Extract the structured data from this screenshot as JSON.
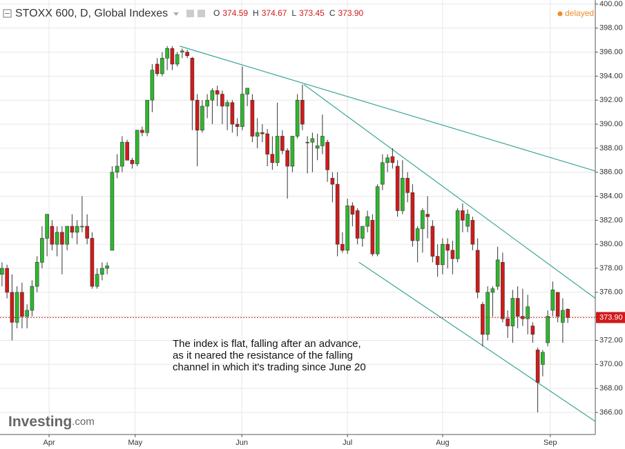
{
  "chart_data": {
    "type": "candlestick",
    "title": "STOXX 600, D, Global Indexes",
    "ohlc_header": [
      {
        "key": "O",
        "value": "374.59"
      },
      {
        "key": "H",
        "value": "374.67"
      },
      {
        "key": "L",
        "value": "373.45"
      },
      {
        "key": "C",
        "value": "373.90"
      }
    ],
    "status": "delayed",
    "logo": {
      "main": "Investing",
      "suffix": ".com"
    },
    "annotation": [
      "The index is flat, falling after an advance,",
      "as it neared the resistance of the falling",
      "channel in which it's trading since June 20"
    ],
    "up_color": "#2db82d",
    "down_color": "#d11a1a",
    "trendline_color": "#3aa597",
    "grid": true,
    "ylim": [
      364.16,
      400.34
    ],
    "xlim": [
      -0.4,
      118.5
    ],
    "yticks": [
      {
        "value": 366,
        "label": "366.00"
      },
      {
        "value": 368,
        "label": "368.00"
      },
      {
        "value": 370,
        "label": "370.00"
      },
      {
        "value": 372,
        "label": "372.00"
      },
      {
        "value": 374,
        "label": "374.00"
      },
      {
        "value": 376,
        "label": "376.00"
      },
      {
        "value": 378,
        "label": "378.00"
      },
      {
        "value": 380,
        "label": "380.00"
      },
      {
        "value": 382,
        "label": "382.00"
      },
      {
        "value": 384,
        "label": "384.00"
      },
      {
        "value": 386,
        "label": "386.00"
      },
      {
        "value": 388,
        "label": "388.00"
      },
      {
        "value": 390,
        "label": "390.00"
      },
      {
        "value": 392,
        "label": "392.00"
      },
      {
        "value": 394,
        "label": "394.00"
      },
      {
        "value": 396,
        "label": "396.00"
      },
      {
        "value": 398,
        "label": "398.00"
      },
      {
        "value": 400,
        "label": "400.00"
      }
    ],
    "xticks": [
      {
        "value": 9.4,
        "label": "Apr"
      },
      {
        "value": 26.6,
        "label": "May"
      },
      {
        "value": 47.9,
        "label": "Jun"
      },
      {
        "value": 69,
        "label": "Jul"
      },
      {
        "value": 88,
        "label": "Aug"
      },
      {
        "value": 109.5,
        "label": "Sep"
      }
    ],
    "last_price": 373.9,
    "last_price_label": "373.90",
    "trendlines": [
      {
        "x": [
          35.5,
          118.5
        ],
        "y": [
          396.5,
          386.1
        ]
      },
      {
        "x": [
          60.3,
          118.5
        ],
        "y": [
          393.3,
          375.5
        ]
      },
      {
        "x": [
          71.3,
          118.5
        ],
        "y": [
          378.5,
          365.25
        ]
      }
    ],
    "series": {
      "open": [
        377.5,
        378,
        376,
        373.5,
        376,
        374,
        374.5,
        376.5,
        378.5,
        380.5,
        381.5,
        380,
        381,
        380,
        381.5,
        381,
        381.5,
        381.5,
        380.5,
        376.5,
        377.5,
        378,
        379.5,
        386,
        386.5,
        388.5,
        387,
        386.7,
        389.5,
        389.3,
        392,
        395,
        394.2,
        395.5,
        396.3,
        395,
        396,
        396,
        395.5,
        392,
        389.5,
        391.5,
        392,
        392.8,
        392.5,
        391.5,
        391.8,
        390,
        389.8,
        392.5,
        392,
        389,
        389.3,
        389.2,
        387.5,
        386.8,
        389,
        387.8,
        386.5,
        389,
        392,
        388.5,
        388.5,
        388,
        388.2,
        388.5,
        385.5,
        385,
        380,
        379.5,
        383.2,
        382.8,
        380.5,
        381.5,
        382,
        379.2,
        385,
        386.8,
        387.3,
        386.5,
        382.8,
        385.5,
        384.3,
        380.3,
        381.3,
        382.5,
        381.5,
        379,
        378.3,
        380,
        379.5,
        378.8,
        382.8,
        381.5,
        382,
        379.5,
        375,
        372.5,
        376,
        376.5,
        378.5,
        373.8,
        373.2,
        375.5,
        374,
        373.8,
        373.2,
        371.2,
        370,
        371.8,
        374.5,
        376,
        373.5,
        374.59
      ],
      "high": [
        378.5,
        378.3,
        377.5,
        376.5,
        376.8,
        375,
        377,
        379,
        381.5,
        382.5,
        382,
        381.5,
        381.5,
        381.5,
        382.5,
        382,
        384,
        382.5,
        381,
        378,
        378.5,
        378.5,
        386.5,
        387.5,
        389,
        388.7,
        387.2,
        389.5,
        389.8,
        392,
        395,
        395.5,
        396,
        396.5,
        396.5,
        396,
        396.3,
        396.2,
        395.6,
        392.5,
        392,
        392.5,
        393,
        393.2,
        392.8,
        392,
        392,
        390.5,
        394.8,
        393,
        392.5,
        390.5,
        390,
        389.6,
        389,
        391.8,
        389.5,
        388,
        389,
        392.5,
        393.3,
        389,
        389.3,
        389.2,
        390.8,
        388.7,
        386,
        386,
        381,
        383.8,
        383.5,
        383,
        381.5,
        382.8,
        382.5,
        385,
        387.5,
        387.5,
        388,
        387,
        387,
        386,
        385,
        381.5,
        383,
        384,
        382,
        380,
        380.5,
        380.5,
        380.3,
        383,
        383.4,
        382.9,
        382.3,
        380.5,
        375.2,
        376.5,
        376.5,
        379.8,
        379.3,
        374.5,
        376.2,
        376.5,
        376.3,
        375.8,
        373.5,
        371.4,
        371.2,
        374.5,
        376.9,
        376,
        375.5,
        374.67
      ],
      "low": [
        376.5,
        375.5,
        372,
        373,
        373,
        373,
        374,
        376,
        378,
        379,
        379.5,
        379,
        377.5,
        379.5,
        380.5,
        380,
        381,
        380,
        376.3,
        376.3,
        377,
        377.5,
        379.5,
        385.5,
        386,
        387,
        386.3,
        386.5,
        389,
        389,
        391,
        394,
        394,
        394.5,
        394.5,
        394.8,
        395.5,
        395.5,
        389.5,
        386.5,
        389.3,
        390.5,
        390,
        391.5,
        390,
        389.5,
        389.3,
        389,
        389.5,
        391.5,
        388.5,
        388,
        388.5,
        386.5,
        386.2,
        386.5,
        387.5,
        383.8,
        386,
        388.8,
        389.5,
        385.9,
        386,
        387,
        387.5,
        385.2,
        383.5,
        379,
        379.3,
        379.2,
        381.5,
        380,
        379.8,
        381,
        379,
        379,
        384.5,
        386,
        386.3,
        382.3,
        382.5,
        383.5,
        379.8,
        378.5,
        379.3,
        380.5,
        378.5,
        377.3,
        377.5,
        378,
        377.5,
        378.5,
        381,
        381,
        379.5,
        375.5,
        371.5,
        372,
        374,
        376.2,
        373.5,
        372.2,
        371.8,
        373,
        373.2,
        372.5,
        371.8,
        366,
        369,
        371.5,
        374,
        373.5,
        371.8,
        373.45
      ],
      "close": [
        378,
        376,
        373.5,
        376,
        374,
        374.5,
        376.5,
        378.5,
        380.5,
        382.5,
        380,
        381,
        380,
        381.5,
        381,
        381.5,
        381.5,
        380.5,
        376.5,
        377.5,
        378,
        378.2,
        386,
        386.5,
        388.5,
        387,
        386.7,
        389.5,
        389.3,
        392,
        394.5,
        394.2,
        395.5,
        396.3,
        395,
        395.8,
        396.1,
        395.7,
        392,
        389.5,
        391.5,
        392,
        392.8,
        392.5,
        391.5,
        391.8,
        390,
        389.8,
        392.5,
        393,
        389,
        389.3,
        389.2,
        387.5,
        386.8,
        389,
        387.8,
        386.5,
        389,
        392,
        390,
        388.5,
        388.8,
        388.2,
        389,
        386.2,
        385,
        380,
        379.5,
        383.2,
        382.5,
        380.5,
        381.5,
        382.3,
        379.2,
        384.8,
        386.8,
        387.2,
        386.8,
        382.8,
        385.5,
        384.3,
        380.3,
        381.3,
        382.8,
        382.3,
        379,
        378.3,
        380,
        379.5,
        378.8,
        382.8,
        382,
        382.5,
        380,
        376,
        372.5,
        376,
        376.3,
        378.7,
        373.8,
        373.2,
        375.5,
        374,
        373.8,
        374.8,
        372.5,
        368.5,
        371,
        374,
        376.2,
        374,
        374.5,
        373.9
      ]
    }
  }
}
